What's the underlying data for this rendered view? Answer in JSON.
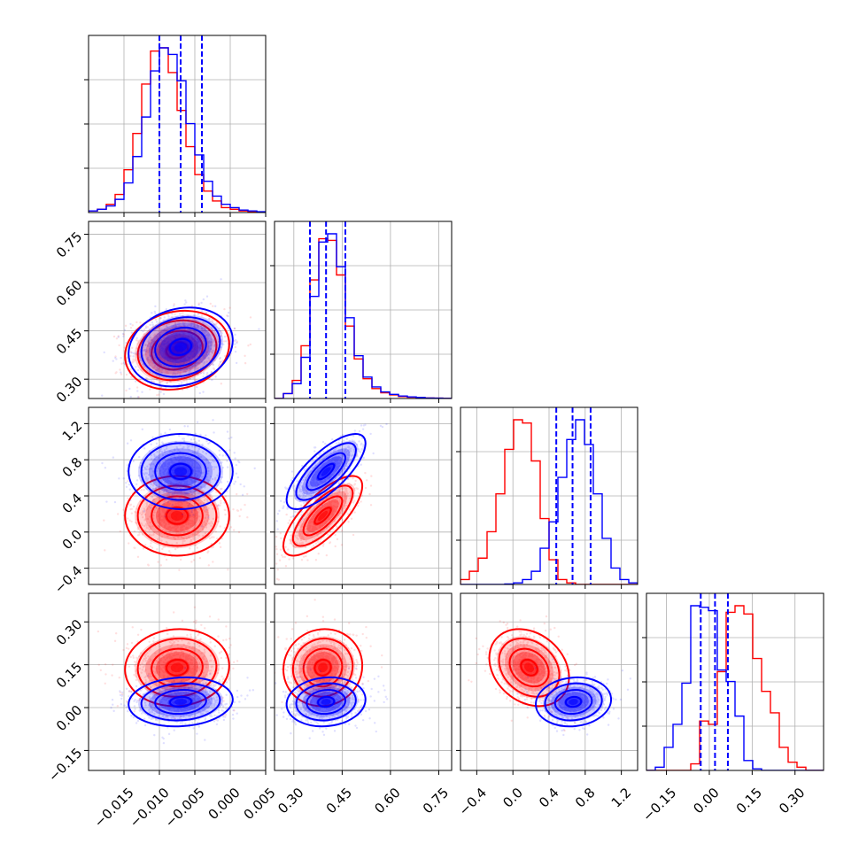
{
  "chart_data": {
    "type": "corner",
    "colors": {
      "blue": "#0000ff",
      "red": "#ff0000",
      "grid": "#b0b0b0"
    },
    "params": [
      {
        "range": [
          -0.02,
          0.005
        ],
        "ticks": [
          -0.015,
          -0.01,
          -0.005,
          0.0,
          0.005
        ],
        "tick_labels": [
          "−0.015",
          "−0.010",
          "−0.005",
          "0.000",
          "0.005"
        ]
      },
      {
        "range": [
          0.24,
          0.79
        ],
        "ticks": [
          0.3,
          0.45,
          0.6,
          0.75
        ],
        "tick_labels": [
          "0.30",
          "0.45",
          "0.60",
          "0.75"
        ]
      },
      {
        "range": [
          -0.58,
          1.38
        ],
        "ticks": [
          -0.4,
          0.0,
          0.4,
          0.8,
          1.2
        ],
        "tick_labels": [
          "−0.4",
          "0.0",
          "0.4",
          "0.8",
          "1.2"
        ]
      },
      {
        "range": [
          -0.22,
          0.4
        ],
        "ticks": [
          -0.15,
          0.0,
          0.15,
          0.3
        ],
        "tick_labels": [
          "−0.15",
          "0.00",
          "0.15",
          "0.30"
        ]
      }
    ],
    "series": [
      {
        "color": "blue",
        "mean": [
          -0.007,
          0.4,
          0.67,
          0.02
        ],
        "sd": [
          0.003,
          0.05,
          0.17,
          0.035
        ],
        "corr": [
          [
            0,
            1,
            0.17
          ],
          [
            1,
            2,
            0.75
          ],
          [
            0,
            3,
            0.1
          ],
          [
            1,
            3,
            0.1
          ],
          [
            2,
            3,
            0.1
          ]
        ],
        "quantiles": [
          [
            -0.01,
            -0.007,
            -0.004
          ],
          [
            0.35,
            0.4,
            0.46
          ],
          [
            0.48,
            0.66,
            0.86
          ],
          [
            -0.03,
            0.02,
            0.065
          ]
        ]
      },
      {
        "color": "red",
        "mean": [
          -0.0075,
          0.39,
          0.18,
          0.14
        ],
        "sd": [
          0.003,
          0.05,
          0.18,
          0.055
        ],
        "corr": [
          [
            0,
            1,
            0.15
          ],
          [
            1,
            2,
            0.75
          ],
          [
            0,
            3,
            0.05
          ],
          [
            1,
            3,
            0.05
          ],
          [
            2,
            3,
            -0.25
          ]
        ]
      }
    ],
    "histograms": [
      {
        "blue": [
          1,
          2,
          4,
          8,
          18,
          34,
          58,
          86,
          100,
          96,
          80,
          54,
          35,
          19,
          10,
          5,
          3,
          1.5,
          1,
          0.5
        ],
        "red": [
          1,
          2,
          5,
          11,
          26,
          48,
          78,
          98,
          100,
          85,
          62,
          40,
          23,
          13,
          7,
          3,
          2,
          1,
          0.5,
          0.3
        ]
      },
      {
        "blue": [
          0,
          3,
          9,
          25,
          62,
          95,
          100,
          80,
          49,
          26,
          13,
          7,
          4,
          2.5,
          1.5,
          1,
          0.6,
          0.3,
          0.2,
          0.1
        ],
        "red": [
          0,
          3,
          11,
          32,
          72,
          97,
          96,
          75,
          44,
          24,
          12,
          6,
          3.5,
          2.2,
          1.2,
          0.8,
          0.5,
          0.3,
          0.2,
          0.1
        ]
      },
      {
        "blue": [
          0,
          0,
          0,
          0,
          0,
          0.3,
          1,
          3,
          8,
          22,
          38,
          65,
          88,
          100,
          85,
          55,
          28,
          10,
          3,
          1
        ],
        "red": [
          3,
          8,
          16,
          32,
          55,
          82,
          100,
          98,
          75,
          40,
          15,
          3,
          1,
          0,
          0,
          0,
          0,
          0,
          0,
          0
        ]
      },
      {
        "blue": [
          0,
          2,
          14,
          28,
          53,
          100,
          99,
          97,
          61,
          54,
          33,
          6,
          1,
          0,
          0,
          0,
          0,
          0,
          0,
          0
        ],
        "red": [
          0,
          0,
          0,
          0,
          0,
          4,
          30,
          28,
          60,
          96,
          100,
          95,
          68,
          48,
          35,
          14,
          5,
          2,
          0,
          0
        ]
      }
    ]
  }
}
